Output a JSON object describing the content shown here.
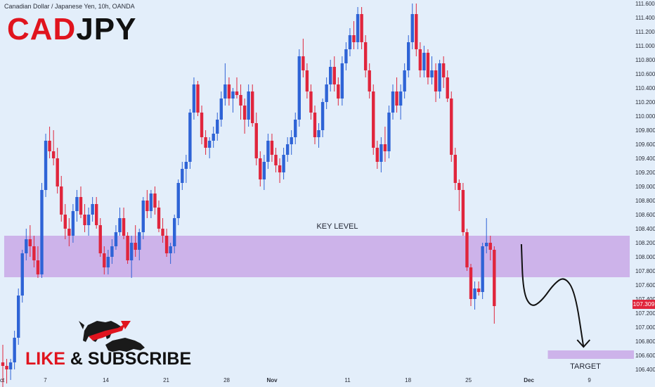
{
  "header": {
    "instrument": "Canadian Dollar / Japanese Yen, 10h, OANDA",
    "symbol_part1": "CAD",
    "symbol_part2": "JPY"
  },
  "current_price": "107.309",
  "cta": {
    "like": "LIKE",
    "amp": "&",
    "subscribe": "SUBSCRIBE"
  },
  "colors": {
    "up": "#2e63d6",
    "down": "#e0253c",
    "zone": "#c9a8e6",
    "background": "#e3eefa"
  },
  "chart_data": {
    "type": "candlestick",
    "title": "",
    "y_axis": {
      "position": "right",
      "ylim": [
        106.35,
        111.65
      ],
      "ticks": [
        "106.400",
        "106.600",
        "106.800",
        "107.000",
        "107.200",
        "107.400",
        "107.600",
        "107.800",
        "108.000",
        "108.200",
        "108.400",
        "108.600",
        "108.800",
        "109.000",
        "109.200",
        "109.400",
        "109.600",
        "109.800",
        "110.000",
        "110.200",
        "110.400",
        "110.600",
        "110.800",
        "111.000",
        "111.200",
        "111.400",
        "111.600"
      ]
    },
    "x_axis": {
      "ticks": [
        {
          "label": "Oct",
          "pos": 0.0
        },
        {
          "label": "7",
          "pos": 10.8
        },
        {
          "label": "14",
          "pos": 25.2
        },
        {
          "label": "21",
          "pos": 39.6
        },
        {
          "label": "28",
          "pos": 54.0
        },
        {
          "label": "Nov",
          "pos": 64.8
        },
        {
          "label": "11",
          "pos": 82.8
        },
        {
          "label": "18",
          "pos": 97.2
        },
        {
          "label": "25",
          "pos": 111.6
        },
        {
          "label": "Dec",
          "pos": 126.0
        },
        {
          "label": "9",
          "pos": 140.4
        }
      ],
      "range": [
        0,
        150
      ]
    },
    "zones": [
      {
        "label": "KEY LEVEL",
        "from": 107.71,
        "to": 108.3,
        "x_start": 1,
        "x_end": 150
      },
      {
        "label": "TARGET",
        "from": 106.55,
        "to": 106.67,
        "x_start": 130.5,
        "x_end": 151
      }
    ],
    "projection": [
      [
        124.2,
        108.18
      ],
      [
        124.6,
        107.5
      ],
      [
        126.5,
        107.28
      ],
      [
        129.0,
        107.37
      ],
      [
        132.0,
        107.62
      ],
      [
        134.5,
        107.72
      ],
      [
        137.0,
        107.5
      ],
      [
        139.0,
        106.72
      ]
    ],
    "candles": [
      [
        106.5,
        106.75,
        106.1,
        106.45
      ],
      [
        106.45,
        106.55,
        106.2,
        106.4
      ],
      [
        106.4,
        106.55,
        106.25,
        106.5
      ],
      [
        106.5,
        106.95,
        106.4,
        106.85
      ],
      [
        106.85,
        107.55,
        106.75,
        107.45
      ],
      [
        107.45,
        108.1,
        107.35,
        108.05
      ],
      [
        108.05,
        108.4,
        107.95,
        108.25
      ],
      [
        108.25,
        108.45,
        108.0,
        108.15
      ],
      [
        108.15,
        108.3,
        107.85,
        107.95
      ],
      [
        107.95,
        108.15,
        107.7,
        107.75
      ],
      [
        107.75,
        109.05,
        107.7,
        108.95
      ],
      [
        108.95,
        109.75,
        108.85,
        109.65
      ],
      [
        109.65,
        109.85,
        109.4,
        109.5
      ],
      [
        109.5,
        109.8,
        109.3,
        109.4
      ],
      [
        109.4,
        109.55,
        108.9,
        109.0
      ],
      [
        109.0,
        109.15,
        108.5,
        108.6
      ],
      [
        108.6,
        108.75,
        108.25,
        108.4
      ],
      [
        108.4,
        108.55,
        108.15,
        108.3
      ],
      [
        108.3,
        108.75,
        108.2,
        108.65
      ],
      [
        108.65,
        108.95,
        108.5,
        108.85
      ],
      [
        108.85,
        109.0,
        108.55,
        108.6
      ],
      [
        108.6,
        108.75,
        108.35,
        108.45
      ],
      [
        108.45,
        108.7,
        108.3,
        108.6
      ],
      [
        108.6,
        108.85,
        108.5,
        108.75
      ],
      [
        108.75,
        108.85,
        108.4,
        108.45
      ],
      [
        108.45,
        108.55,
        108.0,
        108.05
      ],
      [
        108.05,
        108.15,
        107.75,
        107.85
      ],
      [
        107.85,
        108.1,
        107.75,
        108.0
      ],
      [
        108.0,
        108.25,
        107.9,
        108.15
      ],
      [
        108.15,
        108.45,
        108.1,
        108.35
      ],
      [
        108.35,
        108.7,
        108.3,
        108.55
      ],
      [
        108.55,
        108.7,
        108.25,
        108.3
      ],
      [
        108.3,
        108.35,
        107.9,
        107.95
      ],
      [
        107.95,
        108.3,
        107.7,
        108.2
      ],
      [
        108.2,
        108.45,
        108.0,
        108.1
      ],
      [
        108.1,
        108.4,
        107.95,
        108.35
      ],
      [
        108.35,
        108.85,
        108.25,
        108.8
      ],
      [
        108.8,
        108.95,
        108.55,
        108.65
      ],
      [
        108.65,
        108.95,
        108.55,
        108.9
      ],
      [
        108.9,
        109.0,
        108.6,
        108.7
      ],
      [
        108.7,
        108.8,
        108.35,
        108.4
      ],
      [
        108.4,
        108.55,
        108.2,
        108.3
      ],
      [
        108.3,
        108.4,
        108.0,
        108.05
      ],
      [
        108.05,
        108.2,
        107.9,
        108.15
      ],
      [
        108.15,
        108.6,
        108.05,
        108.55
      ],
      [
        108.55,
        109.1,
        108.45,
        109.05
      ],
      [
        109.05,
        109.35,
        108.95,
        109.25
      ],
      [
        109.25,
        109.45,
        109.05,
        109.35
      ],
      [
        109.35,
        110.1,
        109.25,
        110.05
      ],
      [
        110.05,
        110.55,
        109.95,
        110.45
      ],
      [
        110.45,
        110.5,
        110.0,
        110.05
      ],
      [
        110.05,
        110.15,
        109.6,
        109.7
      ],
      [
        109.7,
        109.8,
        109.45,
        109.55
      ],
      [
        109.55,
        109.7,
        109.4,
        109.65
      ],
      [
        109.65,
        109.85,
        109.55,
        109.75
      ],
      [
        109.75,
        110.05,
        109.65,
        109.95
      ],
      [
        109.95,
        110.35,
        109.85,
        110.25
      ],
      [
        110.25,
        110.75,
        110.15,
        110.45
      ],
      [
        110.45,
        110.55,
        110.15,
        110.25
      ],
      [
        110.25,
        110.4,
        110.05,
        110.35
      ],
      [
        110.35,
        110.55,
        110.25,
        110.3
      ],
      [
        110.3,
        110.45,
        109.95,
        110.15
      ],
      [
        110.15,
        110.25,
        109.75,
        109.95
      ],
      [
        109.95,
        110.45,
        109.85,
        110.35
      ],
      [
        110.35,
        110.45,
        109.85,
        109.9
      ],
      [
        109.9,
        110.05,
        109.3,
        109.4
      ],
      [
        109.4,
        109.5,
        109.0,
        109.1
      ],
      [
        109.1,
        109.45,
        108.95,
        109.35
      ],
      [
        109.35,
        109.75,
        109.25,
        109.65
      ],
      [
        109.65,
        109.75,
        109.35,
        109.45
      ],
      [
        109.45,
        109.55,
        109.2,
        109.3
      ],
      [
        109.3,
        109.4,
        109.05,
        109.2
      ],
      [
        109.2,
        109.55,
        109.1,
        109.45
      ],
      [
        109.45,
        109.7,
        109.35,
        109.6
      ],
      [
        109.6,
        109.8,
        109.45,
        109.7
      ],
      [
        109.7,
        110.05,
        109.6,
        109.95
      ],
      [
        109.95,
        110.95,
        109.85,
        110.85
      ],
      [
        110.85,
        111.1,
        110.55,
        110.65
      ],
      [
        110.65,
        110.75,
        110.25,
        110.35
      ],
      [
        110.35,
        110.45,
        109.95,
        110.05
      ],
      [
        110.05,
        110.15,
        109.6,
        109.7
      ],
      [
        109.7,
        109.9,
        109.55,
        109.8
      ],
      [
        109.8,
        110.25,
        109.7,
        110.2
      ],
      [
        110.2,
        110.55,
        110.1,
        110.45
      ],
      [
        110.45,
        110.8,
        110.35,
        110.7
      ],
      [
        110.7,
        110.85,
        110.35,
        110.45
      ],
      [
        110.45,
        110.55,
        110.15,
        110.25
      ],
      [
        110.25,
        110.85,
        110.15,
        110.75
      ],
      [
        110.75,
        111.05,
        110.65,
        110.95
      ],
      [
        110.95,
        111.25,
        110.85,
        111.15
      ],
      [
        111.15,
        111.35,
        110.95,
        111.05
      ],
      [
        111.05,
        111.55,
        110.95,
        111.45
      ],
      [
        111.45,
        111.55,
        110.95,
        111.05
      ],
      [
        111.05,
        111.15,
        110.55,
        110.65
      ],
      [
        110.65,
        110.75,
        110.25,
        110.35
      ],
      [
        110.35,
        110.45,
        109.45,
        109.55
      ],
      [
        109.55,
        109.65,
        109.25,
        109.35
      ],
      [
        109.35,
        109.7,
        109.2,
        109.6
      ],
      [
        109.6,
        109.85,
        109.35,
        109.5
      ],
      [
        109.5,
        110.15,
        109.4,
        110.05
      ],
      [
        110.05,
        110.45,
        109.95,
        110.35
      ],
      [
        110.35,
        110.55,
        110.05,
        110.15
      ],
      [
        110.15,
        110.45,
        109.95,
        110.35
      ],
      [
        110.35,
        110.75,
        110.25,
        110.65
      ],
      [
        110.65,
        111.15,
        110.55,
        111.05
      ],
      [
        111.05,
        111.6,
        110.95,
        111.45
      ],
      [
        111.45,
        111.6,
        110.85,
        110.95
      ],
      [
        110.95,
        111.05,
        110.55,
        110.65
      ],
      [
        110.65,
        111.0,
        110.55,
        110.9
      ],
      [
        110.9,
        110.95,
        110.45,
        110.55
      ],
      [
        110.55,
        110.85,
        110.45,
        110.65
      ],
      [
        110.65,
        110.75,
        110.2,
        110.35
      ],
      [
        110.35,
        110.8,
        110.25,
        110.75
      ],
      [
        110.75,
        110.85,
        110.4,
        110.55
      ],
      [
        110.55,
        110.65,
        110.2,
        110.25
      ],
      [
        110.25,
        110.35,
        109.35,
        109.45
      ],
      [
        109.45,
        109.55,
        108.95,
        109.05
      ],
      [
        109.05,
        109.1,
        108.65,
        108.95
      ],
      [
        108.95,
        109.05,
        108.3,
        108.35
      ],
      [
        108.35,
        108.4,
        107.8,
        107.85
      ],
      [
        107.85,
        107.9,
        107.3,
        107.4
      ],
      [
        107.4,
        107.65,
        107.25,
        107.55
      ],
      [
        107.55,
        107.65,
        107.45,
        107.5
      ],
      [
        107.5,
        108.2,
        107.4,
        108.15
      ],
      [
        108.15,
        108.55,
        108.05,
        108.2
      ],
      [
        108.2,
        108.3,
        107.95,
        108.1
      ],
      [
        108.1,
        108.15,
        107.05,
        107.3
      ]
    ]
  },
  "annotations": {
    "key_level": "KEY LEVEL",
    "target": "TARGET"
  }
}
